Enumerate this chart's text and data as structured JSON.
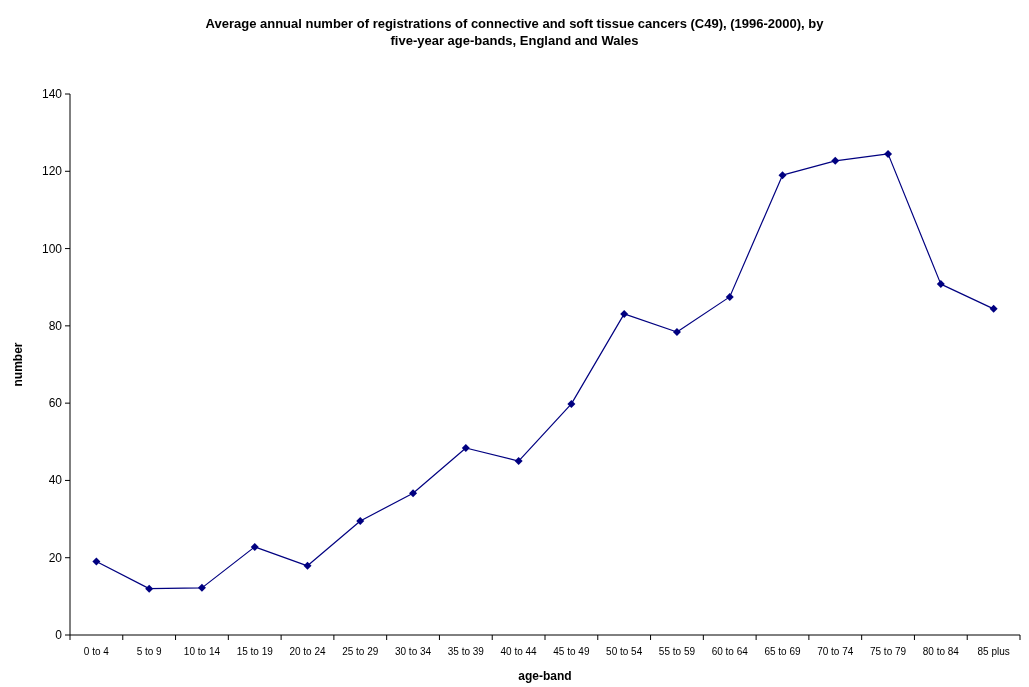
{
  "chart_data": {
    "type": "line",
    "title": "Average annual number of registrations of connective and soft tissue cancers (C49), (1996-2000), by five-year age-bands, England and Wales",
    "xlabel": "age-band",
    "ylabel": "number",
    "categories": [
      "0 to 4",
      "5 to 9",
      "10 to 14",
      "15 to 19",
      "20 to 24",
      "25 to 29",
      "30 to 34",
      "35 to 39",
      "40 to 44",
      "45 to 49",
      "50 to 54",
      "55 to 59",
      "60 to 64",
      "65 to 69",
      "70 to 74",
      "75 to 79",
      "80 to 84",
      "85 plus"
    ],
    "series": [
      {
        "color": "#000080",
        "values": [
          19,
          12,
          12.2,
          22.8,
          17.9,
          29.5,
          36.7,
          48.4,
          45,
          59.8,
          83.1,
          78.4,
          87.5,
          119,
          122.7,
          124.5,
          90.8,
          84.4
        ]
      }
    ],
    "ylim": [
      0,
      140
    ],
    "yticks": [
      0,
      20,
      40,
      60,
      80,
      100,
      120,
      140
    ],
    "grid": false,
    "marker": "diamond",
    "line_style": "solid"
  }
}
